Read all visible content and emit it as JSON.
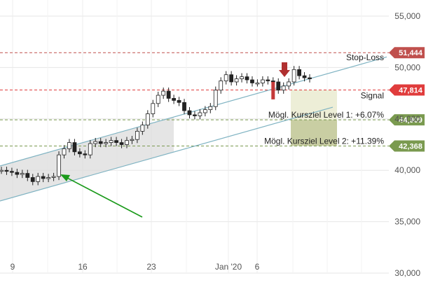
{
  "chart_data": {
    "type": "candlestick",
    "x_ticks": [
      "9",
      "16",
      "23",
      "Jan '20",
      "6"
    ],
    "y_ticks": [
      "55,000",
      "50,000",
      "45,000",
      "40,000",
      "35,000",
      "30,000"
    ],
    "ylim": [
      30000,
      56500
    ],
    "grid": true,
    "levels": [
      {
        "value": 51444,
        "label_value": "51,444",
        "text": "Stop-Loss",
        "color": "#c0504d",
        "dash": true
      },
      {
        "value": 47814,
        "label_value": "47,814",
        "text": "Signal",
        "color": "#e03c3c",
        "dash": true
      },
      {
        "value": 44909,
        "label_value": "44,909",
        "text": "Mögl. Kursziel Level 1: +6.07%",
        "color": "#7a9a4f",
        "dash": true
      },
      {
        "value": 42368,
        "label_value": "42,368",
        "text": "Mögl. Kursziel Level 2: +11.39%",
        "color": "#7a9a4f",
        "dash": true
      }
    ],
    "channel": {
      "color": "#7fb3c2"
    },
    "price_series": [
      40000,
      39900,
      39800,
      39600,
      39700,
      39300,
      38900,
      39400,
      39200,
      39300,
      39400,
      41500,
      42100,
      42700,
      41800,
      41600,
      41500,
      42600,
      42800,
      42600,
      42700,
      42900,
      42700,
      42500,
      42900,
      43000,
      43800,
      44400,
      45500,
      46500,
      47300,
      47700,
      47000,
      46800,
      46600,
      45800,
      45400,
      45300,
      45600,
      45900,
      46200,
      47800,
      48700,
      49300,
      48600,
      48900,
      49100,
      48800,
      48500,
      48500,
      48800,
      48700,
      48600,
      47800,
      48200,
      48600,
      49800,
      49200,
      49000,
      48900
    ]
  }
}
